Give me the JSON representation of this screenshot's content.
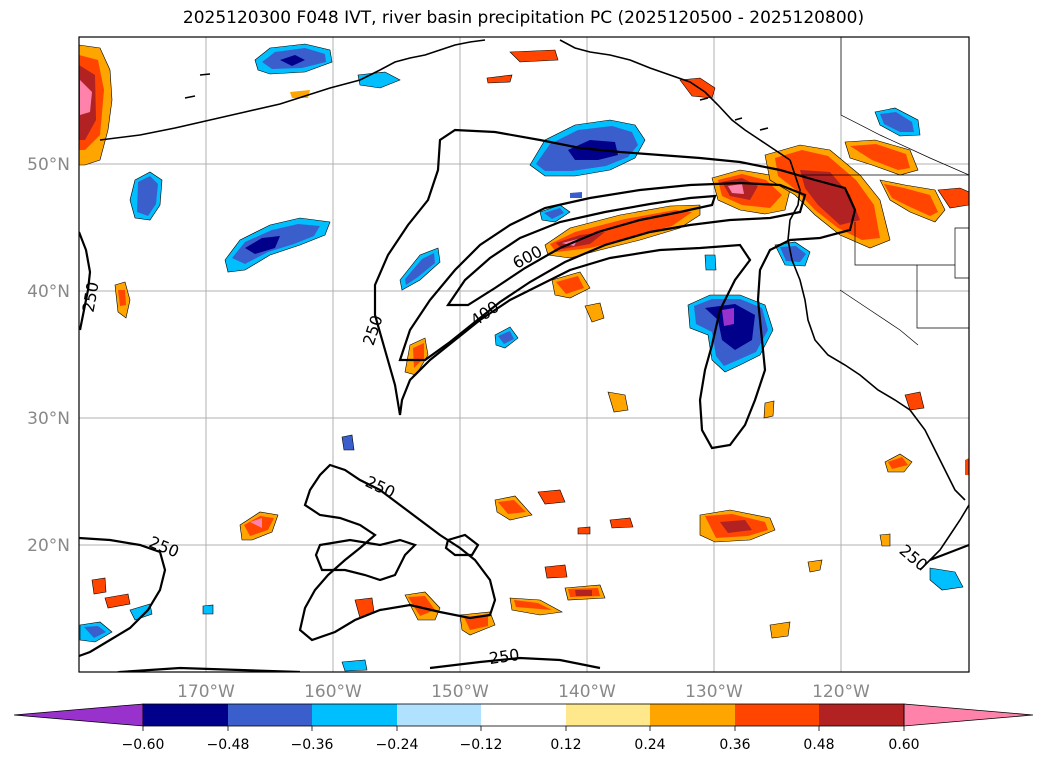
{
  "title": "2025120300 F048 IVT, river basin precipitation PC (2025120500 - 2025120800)",
  "map": {
    "lon_range": [
      -180,
      -110
    ],
    "lat_range": [
      10,
      60
    ],
    "lon_ticks": [
      {
        "lon": -170,
        "label": "170°W"
      },
      {
        "lon": -160,
        "label": "160°W"
      },
      {
        "lon": -150,
        "label": "150°W"
      },
      {
        "lon": -140,
        "label": "140°W"
      },
      {
        "lon": -130,
        "label": "130°W"
      },
      {
        "lon": -120,
        "label": "120°W"
      }
    ],
    "lat_ticks": [
      {
        "lat": 50,
        "label": "50°N"
      },
      {
        "lat": 40,
        "label": "40°N"
      },
      {
        "lat": 30,
        "label": "30°N"
      },
      {
        "lat": 20,
        "label": "20°N"
      }
    ],
    "grid": true,
    "ivt_contour_labels": [
      "250",
      "400",
      "600",
      "250",
      "250",
      "250",
      "250",
      "250"
    ]
  },
  "colorbar": {
    "tick_labels": [
      "−0.60",
      "−0.48",
      "−0.36",
      "−0.24",
      "−0.12",
      "0.12",
      "0.24",
      "0.36",
      "0.48",
      "0.60"
    ],
    "colors": [
      "#9932cc",
      "#00008b",
      "#3a5fcd",
      "#00bfff",
      "#b0e2ff",
      "#ffffff",
      "#ffe88c",
      "#ffa500",
      "#ff4500",
      "#b22222",
      "#ff82ab"
    ]
  }
}
